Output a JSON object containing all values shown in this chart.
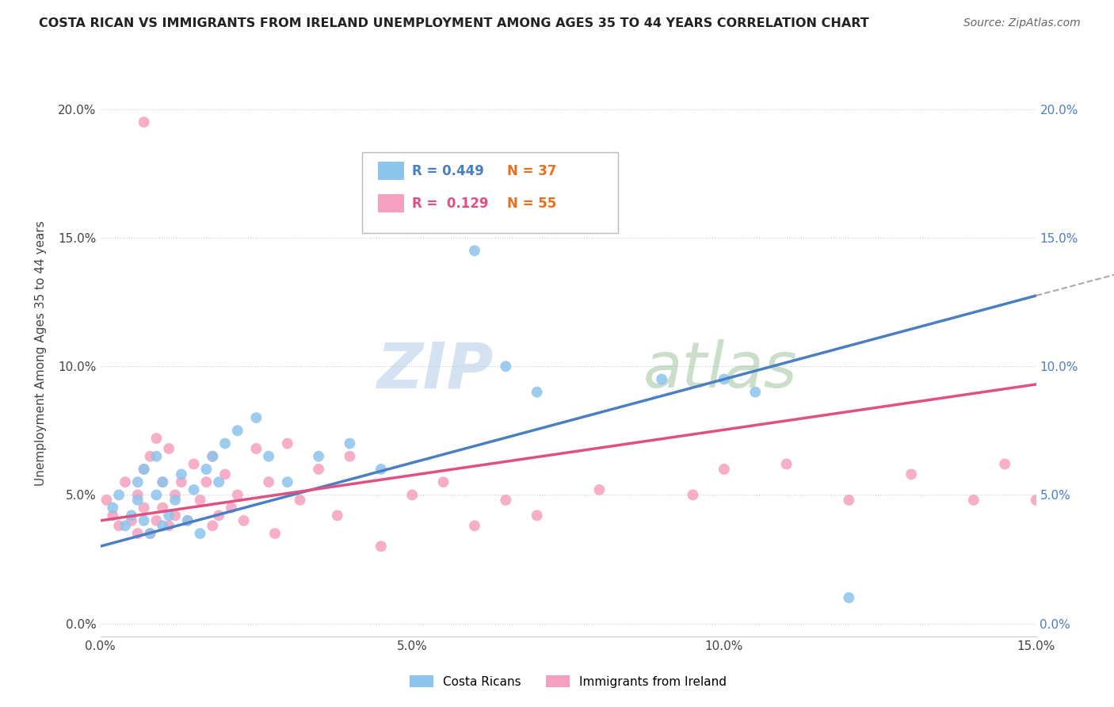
{
  "title": "COSTA RICAN VS IMMIGRANTS FROM IRELAND UNEMPLOYMENT AMONG AGES 35 TO 44 YEARS CORRELATION CHART",
  "source": "Source: ZipAtlas.com",
  "ylabel_label": "Unemployment Among Ages 35 to 44 years",
  "xlim": [
    0.0,
    0.15
  ],
  "ylim": [
    -0.005,
    0.215
  ],
  "y_tick_positions": [
    0.0,
    0.05,
    0.1,
    0.15,
    0.2
  ],
  "x_tick_positions": [
    0.0,
    0.05,
    0.1,
    0.15
  ],
  "x_tick_labels": [
    "0.0%",
    "5.0%",
    "10.0%",
    "15.0%"
  ],
  "y_tick_labels": [
    "0.0%",
    "5.0%",
    "10.0%",
    "15.0%",
    "20.0%"
  ],
  "legend_r1": "R = 0.449",
  "legend_n1": "N = 37",
  "legend_r2": "R =  0.129",
  "legend_n2": "N = 55",
  "legend_labels": [
    "Costa Ricans",
    "Immigrants from Ireland"
  ],
  "costa_ricans_color": "#8cc4ec",
  "ireland_color": "#f5a0c0",
  "trendline_cr_color": "#4a7fc1",
  "trendline_ir_color": "#e05080",
  "trendline_cr_dash_color": "#aaaaaa",
  "background_color": "#ffffff",
  "grid_color": "#cccccc",
  "costa_ricans_x": [
    0.002,
    0.003,
    0.004,
    0.005,
    0.006,
    0.006,
    0.007,
    0.007,
    0.008,
    0.009,
    0.009,
    0.01,
    0.01,
    0.011,
    0.012,
    0.013,
    0.014,
    0.015,
    0.016,
    0.017,
    0.018,
    0.019,
    0.02,
    0.022,
    0.025,
    0.027,
    0.03,
    0.035,
    0.04,
    0.045,
    0.06,
    0.065,
    0.07,
    0.09,
    0.1,
    0.105,
    0.12
  ],
  "costa_ricans_y": [
    0.045,
    0.05,
    0.038,
    0.042,
    0.048,
    0.055,
    0.04,
    0.06,
    0.035,
    0.05,
    0.065,
    0.038,
    0.055,
    0.042,
    0.048,
    0.058,
    0.04,
    0.052,
    0.035,
    0.06,
    0.065,
    0.055,
    0.07,
    0.075,
    0.08,
    0.065,
    0.055,
    0.065,
    0.07,
    0.06,
    0.145,
    0.1,
    0.09,
    0.095,
    0.095,
    0.09,
    0.01
  ],
  "ireland_x": [
    0.001,
    0.002,
    0.003,
    0.004,
    0.005,
    0.006,
    0.006,
    0.007,
    0.007,
    0.008,
    0.008,
    0.009,
    0.009,
    0.01,
    0.01,
    0.011,
    0.011,
    0.012,
    0.012,
    0.013,
    0.014,
    0.015,
    0.016,
    0.017,
    0.018,
    0.018,
    0.019,
    0.02,
    0.021,
    0.022,
    0.023,
    0.025,
    0.027,
    0.028,
    0.03,
    0.032,
    0.035,
    0.038,
    0.04,
    0.045,
    0.05,
    0.055,
    0.06,
    0.065,
    0.07,
    0.08,
    0.095,
    0.1,
    0.11,
    0.12,
    0.13,
    0.14,
    0.145,
    0.15,
    0.007
  ],
  "ireland_y": [
    0.048,
    0.042,
    0.038,
    0.055,
    0.04,
    0.035,
    0.05,
    0.045,
    0.06,
    0.035,
    0.065,
    0.04,
    0.072,
    0.045,
    0.055,
    0.038,
    0.068,
    0.042,
    0.05,
    0.055,
    0.04,
    0.062,
    0.048,
    0.055,
    0.038,
    0.065,
    0.042,
    0.058,
    0.045,
    0.05,
    0.04,
    0.068,
    0.055,
    0.035,
    0.07,
    0.048,
    0.06,
    0.042,
    0.065,
    0.03,
    0.05,
    0.055,
    0.038,
    0.048,
    0.042,
    0.052,
    0.05,
    0.06,
    0.062,
    0.048,
    0.058,
    0.048,
    0.062,
    0.048,
    0.195
  ]
}
